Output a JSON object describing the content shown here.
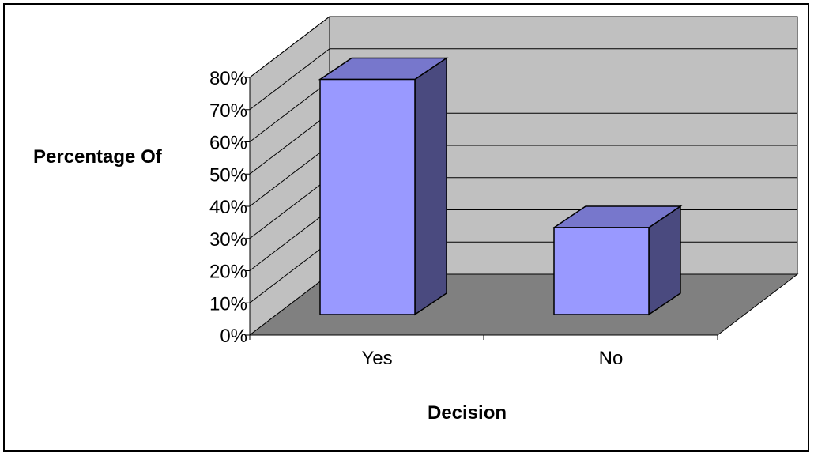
{
  "chart_data": {
    "type": "bar",
    "style": "3d-column",
    "categories": [
      "Yes",
      "No"
    ],
    "values": [
      73,
      27
    ],
    "ylabel": "Percentage Of",
    "xlabel": "Decision",
    "ylim": [
      0,
      80
    ],
    "yticks": [
      "0%",
      "10%",
      "20%",
      "30%",
      "40%",
      "50%",
      "60%",
      "70%",
      "80%"
    ],
    "grid": true,
    "legend": "none",
    "colors": {
      "bar_front": "#9999ff",
      "bar_top": "#7777cc",
      "bar_side": "#4a4a7f",
      "back_wall": "#c0c0c0",
      "floor": "#808080",
      "grid": "#000000"
    }
  }
}
